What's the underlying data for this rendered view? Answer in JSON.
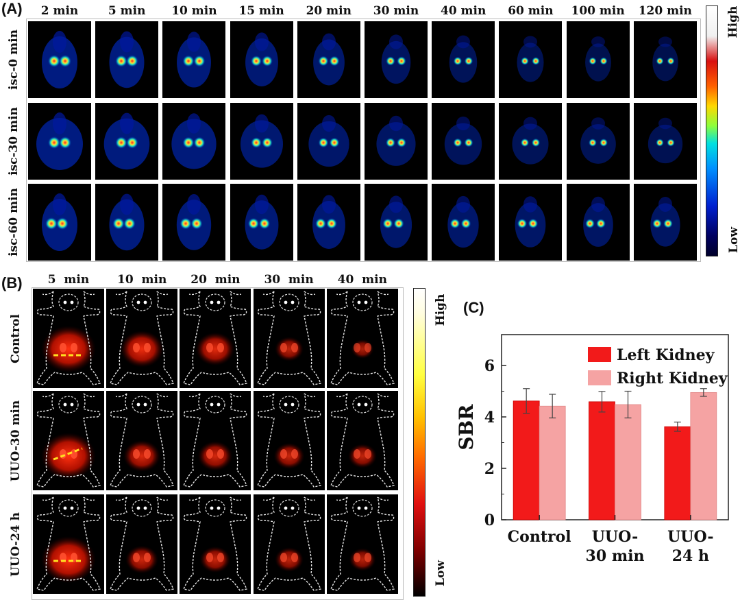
{
  "panel_a": {
    "label": "(A)",
    "columns": [
      "2 min",
      "5 min",
      "10 min",
      "15 min",
      "20 min",
      "30 min",
      "40 min",
      "60 min",
      "100 min",
      "120 min"
    ],
    "rows": [
      "isc-0 min",
      "isc-30 min",
      "isc-60 min"
    ],
    "colorbar": {
      "high": "High",
      "low": "Low"
    }
  },
  "panel_b": {
    "label": "(B)",
    "columns": [
      "5  min",
      "10  min",
      "20  min",
      "30  min",
      "40  min"
    ],
    "rows": [
      "Control",
      "UUO-30 min",
      "UUO-24 h"
    ],
    "colorbar": {
      "high": "High",
      "low": "Low"
    }
  },
  "panel_c": {
    "label": "(C)"
  },
  "colors": {
    "left_kidney": "#f21a1a",
    "right_kidney": "#f5a3a3",
    "tile_bg": "#000000"
  },
  "chart_data": {
    "type": "bar",
    "categories": [
      [
        "Control"
      ],
      [
        "UUO-",
        "30 min"
      ],
      [
        "UUO-",
        "24 h"
      ]
    ],
    "series": [
      {
        "name": "Left Kidney",
        "values": [
          4.62,
          4.59,
          3.62
        ],
        "errors": [
          0.48,
          0.4,
          0.18
        ],
        "color": "#f21a1a"
      },
      {
        "name": "Right Kidney",
        "values": [
          4.42,
          4.48,
          4.95
        ],
        "errors": [
          0.46,
          0.52,
          0.15
        ],
        "color": "#f5a3a3"
      }
    ],
    "ylabel": "SBR",
    "xlabel": "",
    "ylim": [
      0,
      7.2
    ],
    "yticks": [
      0,
      2,
      4,
      6
    ],
    "legend": "top-right",
    "grid": false
  }
}
